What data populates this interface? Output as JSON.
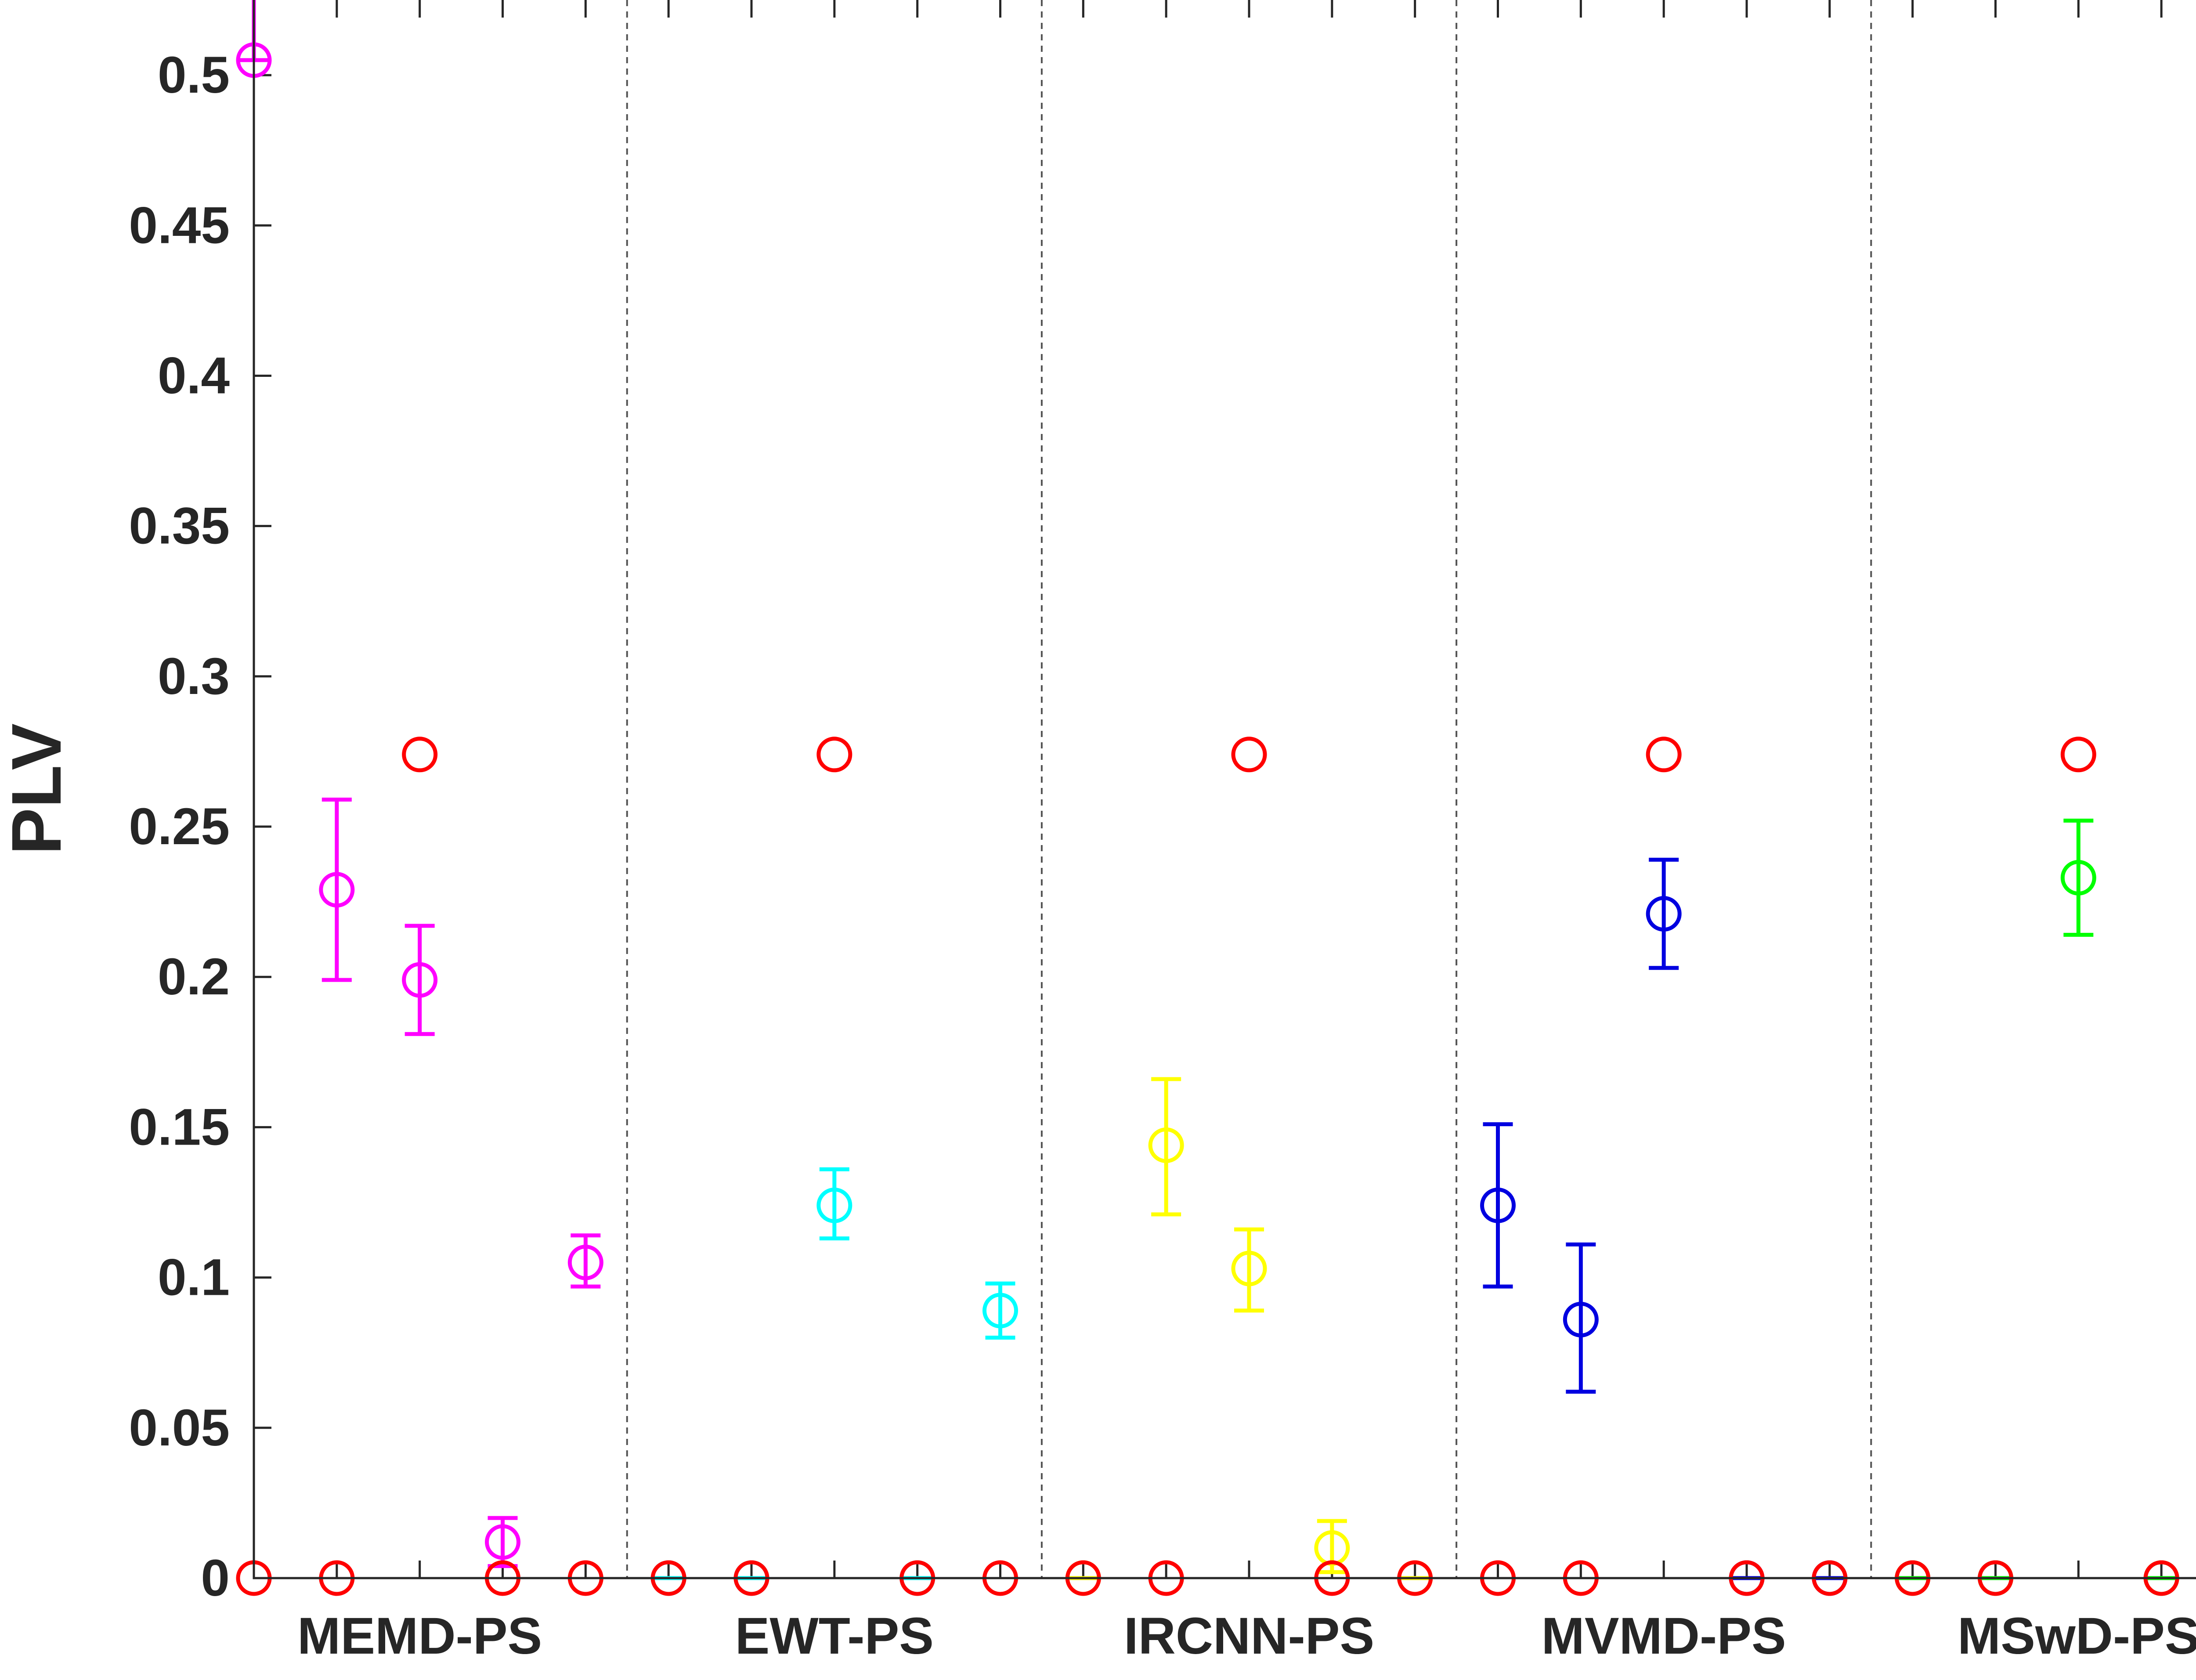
{
  "chart_data": {
    "type": "scatter",
    "ylabel": "PLV",
    "ylim": [
      0,
      0.525
    ],
    "yticks": [
      0,
      0.05,
      0.1,
      0.15,
      0.2,
      0.25,
      0.3,
      0.35,
      0.4,
      0.45,
      0.5
    ],
    "ytick_labels": [
      "0",
      "0.05",
      "0.1",
      "0.15",
      "0.2",
      "0.25",
      "0.3",
      "0.35",
      "0.4",
      "0.45",
      "0.5"
    ],
    "grid": false,
    "groups": [
      "MEMD-PS",
      "EWT-PS",
      "IRCNN-PS",
      "MVMD-PS",
      "MSwD-PS"
    ],
    "points_per_group": 5,
    "reference": {
      "color": "#ff0000",
      "values": [
        0,
        0,
        0.274,
        0,
        0
      ]
    },
    "series": [
      {
        "group": "MEMD-PS",
        "color": "#ff00ff",
        "means": [
          0.505,
          0.229,
          0.199,
          0.012,
          0.105
        ],
        "lower": [
          0.505,
          0.199,
          0.181,
          0.004,
          0.097
        ],
        "upper": [
          0.53,
          0.259,
          0.217,
          0.02,
          0.114
        ]
      },
      {
        "group": "EWT-PS",
        "color": "#00ffff",
        "means": [
          0,
          0,
          0.124,
          0,
          0.089
        ],
        "lower": [
          0,
          0,
          0.113,
          0,
          0.08
        ],
        "upper": [
          0,
          0,
          0.136,
          0,
          0.098
        ]
      },
      {
        "group": "IRCNN-PS",
        "color": "#ffff00",
        "means": [
          0,
          0.144,
          0.103,
          0.01,
          0
        ],
        "lower": [
          0,
          0.121,
          0.089,
          0.002,
          0
        ],
        "upper": [
          0,
          0.166,
          0.116,
          0.019,
          0
        ]
      },
      {
        "group": "MVMD-PS",
        "color": "#0000e0",
        "means": [
          0.124,
          0.086,
          0.221,
          0,
          0
        ],
        "lower": [
          0.097,
          0.062,
          0.203,
          0,
          0
        ],
        "upper": [
          0.151,
          0.111,
          0.239,
          0,
          0
        ]
      },
      {
        "group": "MSwD-PS",
        "color": "#00ff00",
        "means": [
          0,
          0,
          0.233,
          0,
          0
        ],
        "lower": [
          0,
          0,
          0.214,
          0,
          0
        ],
        "upper": [
          0,
          0,
          0.252,
          0,
          0
        ]
      }
    ]
  }
}
